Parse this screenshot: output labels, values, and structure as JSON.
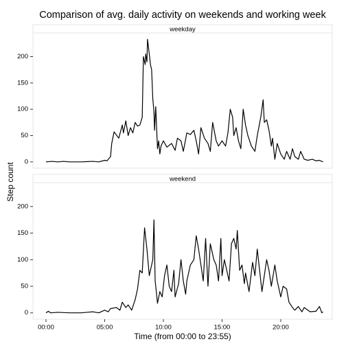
{
  "figure": {
    "title": "Comparison of avg. daily activity on weekends and working week",
    "x_label": "Time (from 00:00 to 23:55)",
    "y_label": "Step count"
  },
  "chart_data": [
    {
      "type": "line",
      "title": "weekday",
      "x": [
        0,
        0.5,
        1,
        1.5,
        2,
        3,
        4,
        4.5,
        5,
        5.2,
        5.5,
        5.6,
        5.8,
        6.2,
        6.5,
        6.6,
        6.8,
        7,
        7.2,
        7.4,
        7.6,
        7.8,
        8,
        8.2,
        8.3,
        8.45,
        8.5,
        8.6,
        8.65,
        8.8,
        8.9,
        9,
        9.1,
        9.2,
        9.25,
        9.35,
        9.5,
        9.6,
        9.7,
        9.8,
        10,
        10.3,
        10.7,
        11,
        11.2,
        11.5,
        11.7,
        12,
        12.3,
        12.6,
        12.8,
        13,
        13.2,
        13.5,
        13.8,
        14,
        14.2,
        14.5,
        14.7,
        15,
        15.3,
        15.5,
        15.7,
        15.9,
        16,
        16.2,
        16.4,
        16.6,
        16.8,
        17,
        17.2,
        17.5,
        17.8,
        18,
        18.3,
        18.5,
        18.6,
        18.8,
        19,
        19.2,
        19.3,
        19.5,
        19.7,
        20,
        20.3,
        20.5,
        20.8,
        21,
        21.2,
        21.5,
        21.7,
        22,
        22.3,
        22.7,
        23,
        23.3,
        23.6
      ],
      "series": [
        {
          "color": "#000000",
          "values": [
            0,
            1,
            0,
            1,
            0,
            0,
            1,
            0,
            3,
            2,
            10,
            35,
            57,
            45,
            70,
            55,
            78,
            50,
            65,
            55,
            75,
            68,
            70,
            85,
            200,
            185,
            205,
            190,
            233,
            205,
            185,
            175,
            120,
            95,
            60,
            105,
            25,
            40,
            15,
            30,
            40,
            28,
            35,
            22,
            45,
            40,
            20,
            55,
            52,
            60,
            40,
            15,
            65,
            45,
            35,
            20,
            75,
            40,
            30,
            40,
            30,
            55,
            100,
            85,
            50,
            65,
            40,
            25,
            100,
            70,
            50,
            30,
            20,
            50,
            85,
            118,
            75,
            80,
            60,
            30,
            45,
            5,
            35,
            15,
            5,
            20,
            5,
            25,
            10,
            5,
            20,
            5,
            3,
            5,
            2,
            3,
            0
          ]
        }
      ],
      "xlim": [
        -1.11,
        24.39
      ],
      "ylim": [
        -12,
        245
      ],
      "xticks": [
        {
          "value": 0,
          "label": "00:00"
        },
        {
          "value": 5,
          "label": "05:00"
        },
        {
          "value": 10,
          "label": "10:00"
        },
        {
          "value": 15,
          "label": "15:00"
        },
        {
          "value": 20,
          "label": "20:00"
        }
      ],
      "yticks": [
        0,
        50,
        100,
        150,
        200
      ],
      "grid": false
    },
    {
      "type": "line",
      "title": "weekend",
      "x": [
        0,
        0.2,
        0.4,
        1,
        2,
        3,
        4,
        4.5,
        5,
        5.3,
        5.5,
        6,
        6.3,
        6.5,
        6.8,
        7,
        7.3,
        7.6,
        7.8,
        8,
        8.2,
        8.4,
        8.6,
        8.8,
        9,
        9.1,
        9.2,
        9.3,
        9.4,
        9.5,
        9.7,
        9.9,
        10.1,
        10.3,
        10.5,
        10.7,
        10.9,
        11,
        11.3,
        11.5,
        11.7,
        11.9,
        12,
        12.3,
        12.6,
        12.8,
        13,
        13.2,
        13.4,
        13.6,
        13.8,
        14,
        14.3,
        14.5,
        14.7,
        14.9,
        15,
        15.2,
        15.4,
        15.6,
        15.8,
        16,
        16.2,
        16.3,
        16.5,
        16.7,
        16.9,
        17,
        17.3,
        17.6,
        17.8,
        18,
        18.2,
        18.4,
        18.6,
        18.8,
        19,
        19.2,
        19.5,
        19.7,
        20,
        20.2,
        20.5,
        20.7,
        21,
        21.2,
        21.5,
        21.8,
        22,
        22.5,
        23,
        23.3,
        23.5,
        23.6
      ],
      "series": [
        {
          "color": "#000000",
          "values": [
            0,
            3,
            0,
            1,
            0,
            0,
            2,
            0,
            5,
            2,
            8,
            10,
            5,
            20,
            10,
            15,
            5,
            25,
            45,
            80,
            75,
            160,
            120,
            70,
            90,
            100,
            175,
            60,
            40,
            18,
            40,
            30,
            70,
            90,
            50,
            40,
            80,
            30,
            55,
            100,
            60,
            35,
            60,
            90,
            100,
            145,
            120,
            90,
            60,
            140,
            50,
            130,
            100,
            90,
            60,
            140,
            70,
            100,
            80,
            60,
            130,
            140,
            120,
            155,
            80,
            90,
            55,
            75,
            40,
            95,
            70,
            120,
            80,
            40,
            70,
            100,
            80,
            50,
            90,
            60,
            30,
            50,
            45,
            20,
            10,
            5,
            12,
            2,
            10,
            2,
            3,
            12,
            0,
            2
          ]
        }
      ],
      "xlim": [
        -1.11,
        24.39
      ],
      "ylim": [
        -12,
        245
      ],
      "xticks": [
        {
          "value": 0,
          "label": "00:00"
        },
        {
          "value": 5,
          "label": "05:00"
        },
        {
          "value": 10,
          "label": "10:00"
        },
        {
          "value": 15,
          "label": "15:00"
        },
        {
          "value": 20,
          "label": "20:00"
        }
      ],
      "yticks": [
        0,
        50,
        100,
        150,
        200
      ],
      "grid": false
    }
  ]
}
